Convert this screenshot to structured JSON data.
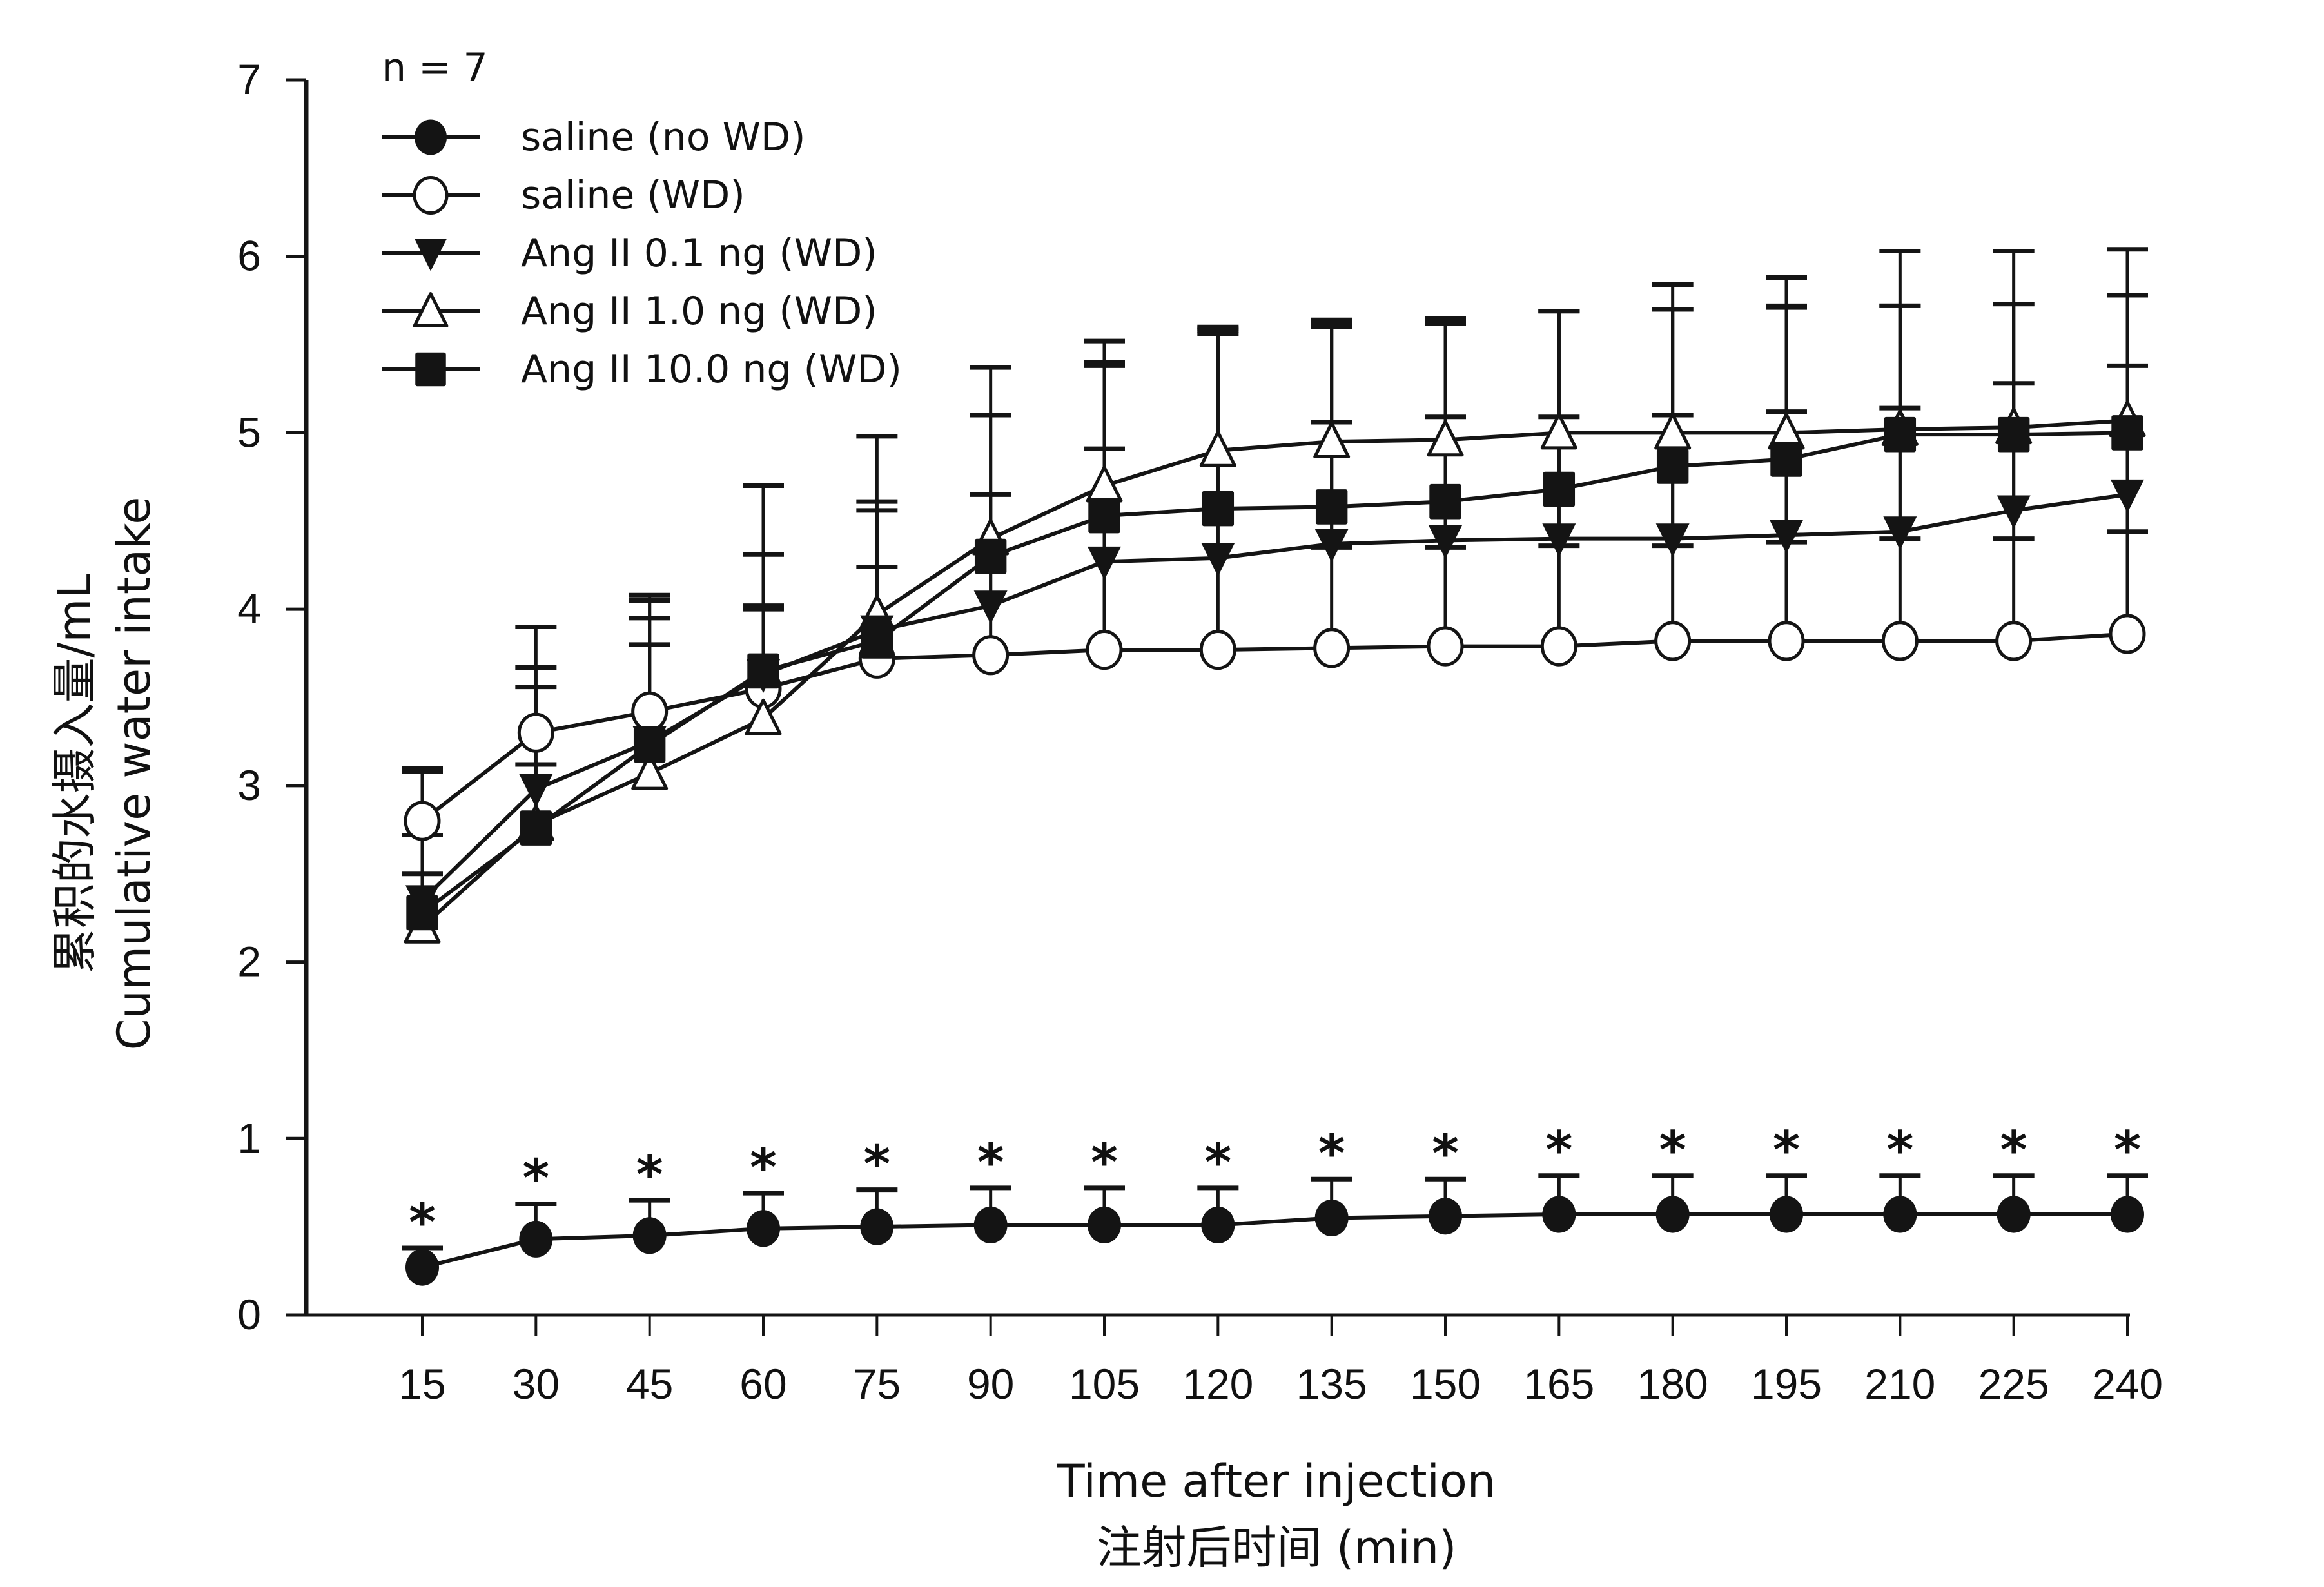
{
  "chart_data": {
    "type": "line",
    "title": "",
    "annotation_n": "n = 7",
    "xlabel": "Time after injection",
    "xlabel_cn": "注射后时间 (min)",
    "ylabel": "Cumulative water intake",
    "ylabel_cn": "累积的水摄入量/mL",
    "x": [
      15,
      30,
      45,
      60,
      75,
      90,
      105,
      120,
      135,
      150,
      165,
      180,
      195,
      210,
      225,
      240
    ],
    "x_tick_labels": [
      "15",
      "30",
      "45",
      "60",
      "75",
      "90",
      "105",
      "120",
      "135",
      "150",
      "165",
      "180",
      "195",
      "210",
      "225",
      "240"
    ],
    "ylim": [
      0,
      7
    ],
    "y_ticks": [
      0,
      1,
      2,
      3,
      4,
      5,
      6,
      7
    ],
    "grid": false,
    "legend_position": "top-left",
    "significance_marker": "*",
    "significance_series": "saline (no WD)",
    "series": [
      {
        "name": "saline (no WD)",
        "marker": "filled-circle",
        "values": [
          0.27,
          0.43,
          0.45,
          0.49,
          0.5,
          0.51,
          0.51,
          0.51,
          0.55,
          0.56,
          0.57,
          0.57,
          0.57,
          0.57,
          0.57,
          0.57
        ],
        "error_upper": [
          0.38,
          0.63,
          0.65,
          0.69,
          0.71,
          0.72,
          0.72,
          0.72,
          0.77,
          0.77,
          0.79,
          0.79,
          0.79,
          0.79,
          0.79,
          0.79
        ],
        "significant": [
          true,
          true,
          true,
          true,
          true,
          true,
          true,
          true,
          true,
          true,
          true,
          true,
          true,
          true,
          true,
          true
        ]
      },
      {
        "name": "saline (WD)",
        "marker": "open-circle",
        "values": [
          2.8,
          3.3,
          3.42,
          3.55,
          3.72,
          3.74,
          3.77,
          3.77,
          3.78,
          3.79,
          3.79,
          3.82,
          3.82,
          3.82,
          3.82,
          3.86
        ],
        "error_upper": [
          3.08,
          3.9,
          4.08,
          4.02,
          4.56,
          4.65,
          4.91,
          5.58,
          5.62,
          5.62,
          5.69,
          5.7,
          5.72,
          5.72,
          5.73,
          5.78
        ]
      },
      {
        "name": "Ang II 0.1 ng (WD)",
        "marker": "filled-triangle-down",
        "values": [
          2.35,
          2.98,
          3.25,
          3.63,
          3.88,
          4.02,
          4.27,
          4.29,
          4.37,
          4.39,
          4.4,
          4.4,
          4.42,
          4.44,
          4.56,
          4.65
        ],
        "error_upper": [
          2.5,
          3.12,
          3.8,
          4.0,
          4.24,
          4.65,
          5.38,
          5.56,
          5.6,
          5.64,
          5.69,
          5.7,
          5.71,
          5.72,
          5.73,
          5.78
        ],
        "error_lower": [
          null,
          null,
          null,
          null,
          null,
          null,
          null,
          null,
          4.35,
          4.35,
          4.36,
          4.36,
          4.38,
          4.4,
          4.4,
          4.44
        ]
      },
      {
        "name": "Ang II 1.0 ng (WD)",
        "marker": "open-triangle-up",
        "values": [
          2.2,
          2.78,
          3.07,
          3.38,
          3.97,
          4.4,
          4.7,
          4.9,
          4.95,
          4.96,
          5.0,
          5.0,
          5.0,
          5.02,
          5.03,
          5.07
        ],
        "error_upper": [
          3.1,
          3.67,
          3.95,
          4.31,
          4.61,
          5.1,
          5.4,
          5.6,
          5.64,
          5.65,
          5.69,
          5.84,
          5.88,
          6.03,
          6.03,
          6.04
        ]
      },
      {
        "name": "Ang II 10.0 ng (WD)",
        "marker": "filled-square",
        "values": [
          2.28,
          2.76,
          3.23,
          3.65,
          3.82,
          4.3,
          4.53,
          4.57,
          4.58,
          4.61,
          4.68,
          4.81,
          4.85,
          4.99,
          4.99,
          5.0
        ],
        "error_upper": [
          2.72,
          3.56,
          4.05,
          4.7,
          4.98,
          5.37,
          5.52,
          5.59,
          5.06,
          5.09,
          5.09,
          5.1,
          5.12,
          5.14,
          5.28,
          5.38
        ]
      }
    ]
  }
}
